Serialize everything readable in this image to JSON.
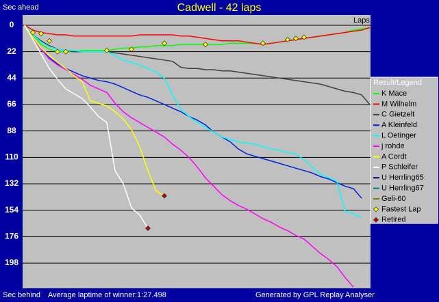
{
  "chart_data": {
    "type": "line",
    "title": "Cadwell - 42 laps",
    "y_label_top": "Sec ahead",
    "y_label_bottom": "Sec behind",
    "x_label": "Laps",
    "note": "Average laptime of winner:1:27.498",
    "credit": "Generated by GPL Replay Analyser",
    "legend_title": "Result/Legend",
    "invert_y": true,
    "grid": true,
    "x": [
      0,
      1,
      2,
      3,
      4,
      5,
      6,
      7,
      8,
      9,
      10,
      11,
      12,
      13,
      14,
      15,
      16,
      17,
      18,
      19,
      20,
      21,
      22,
      23,
      24,
      25,
      26,
      27,
      28,
      29,
      30,
      31,
      32,
      33,
      34,
      35,
      36,
      37,
      38,
      39,
      40,
      41,
      42
    ],
    "xlim": [
      0,
      42
    ],
    "ylim": [
      -8.5,
      219
    ],
    "yticks": [
      0,
      22,
      44,
      66,
      88,
      110,
      132,
      154,
      176,
      198
    ],
    "series": [
      {
        "name": "K Mace",
        "color": "#00ff00",
        "values": [
          0,
          8,
          16,
          20,
          22,
          22,
          22,
          21,
          21,
          21,
          21,
          20,
          19,
          19,
          18,
          18,
          17,
          17,
          17,
          16,
          16,
          16,
          16,
          16,
          16,
          15,
          15,
          15,
          15,
          16,
          15,
          14,
          13,
          12,
          11,
          10,
          9,
          8,
          7,
          6,
          4,
          3,
          2
        ]
      },
      {
        "name": "M Wilhelm",
        "color": "#ff0000",
        "values": [
          0,
          4,
          6,
          7,
          8,
          8,
          9,
          9,
          9,
          9,
          9,
          9,
          9,
          9,
          8,
          8,
          8,
          8,
          8,
          9,
          9,
          10,
          11,
          12,
          13,
          13,
          13,
          14,
          15,
          16,
          15,
          14,
          13,
          12,
          11,
          10,
          9,
          8,
          7,
          6,
          5,
          4,
          2
        ]
      },
      {
        "name": "C Gietzelt",
        "color": "#404040",
        "values": [
          0,
          8,
          13,
          17,
          20,
          21,
          22,
          22,
          22,
          22,
          22,
          23,
          24,
          25,
          26,
          27,
          28,
          29,
          30,
          35,
          36,
          36,
          37,
          37,
          38,
          38,
          39,
          40,
          41,
          42,
          43,
          44,
          45,
          46,
          47,
          48,
          49,
          51,
          53,
          55,
          56,
          58,
          66
        ]
      },
      {
        "name": "A Kleinfeld",
        "color": "#0020e0",
        "values": [
          0,
          10,
          20,
          27,
          32,
          36,
          39,
          42,
          44,
          46,
          47,
          49,
          52,
          55,
          58,
          60,
          63,
          66,
          69,
          72,
          76,
          79,
          83,
          89,
          93,
          97,
          103,
          107,
          109,
          111,
          113,
          115,
          117,
          119,
          121,
          123,
          126,
          128,
          131,
          134,
          136,
          144,
          null
        ]
      },
      {
        "name": "L Oetinger",
        "color": "#00ffff",
        "values": [
          0,
          8,
          14,
          18,
          20,
          21,
          21,
          22,
          22,
          22,
          22,
          25,
          29,
          31,
          33,
          36,
          39,
          44,
          58,
          70,
          76,
          81,
          85,
          89,
          93,
          95,
          97,
          98,
          99,
          101,
          103,
          104,
          106,
          107,
          112,
          118,
          124,
          127,
          130,
          155,
          157,
          160,
          null
        ]
      },
      {
        "name": "j rohde",
        "color": "#ff00ff",
        "values": [
          0,
          10,
          20,
          28,
          33,
          37,
          41,
          45,
          50,
          53,
          56,
          65,
          72,
          77,
          81,
          85,
          89,
          93,
          99,
          104,
          110,
          118,
          127,
          134,
          141,
          146,
          150,
          153,
          157,
          161,
          164,
          168,
          171,
          175,
          178,
          184,
          190,
          195,
          201,
          210,
          218,
          null,
          null
        ]
      },
      {
        "name": "A Cordt",
        "color": "#ffff00",
        "values": [
          0,
          10,
          19,
          25,
          31,
          36,
          42,
          47,
          63,
          65,
          67,
          72,
          78,
          87,
          101,
          121,
          138,
          142,
          null,
          null,
          null,
          null,
          null,
          null,
          null,
          null,
          null,
          null,
          null,
          null,
          null,
          null,
          null,
          null,
          null,
          null,
          null,
          null,
          null,
          null,
          null,
          null,
          null
        ]
      },
      {
        "name": "P Schleifer",
        "color": "#ffffff",
        "values": [
          0,
          12,
          24,
          36,
          45,
          53,
          57,
          61,
          68,
          76,
          81,
          121,
          132,
          152,
          158,
          169,
          null,
          null,
          null,
          null,
          null,
          null,
          null,
          null,
          null,
          null,
          null,
          null,
          null,
          null,
          null,
          null,
          null,
          null,
          null,
          null,
          null,
          null,
          null,
          null,
          null,
          null,
          null
        ]
      },
      {
        "name": "U Herrling65",
        "color": "#000080",
        "values": [
          null,
          null,
          null,
          null,
          null,
          null,
          null,
          null,
          null,
          null,
          null,
          null,
          null,
          null,
          null,
          null,
          null,
          null,
          null,
          null,
          null,
          null,
          null,
          null,
          null,
          null,
          null,
          null,
          null,
          null,
          null,
          null,
          null,
          null,
          null,
          null,
          null,
          null,
          null,
          null,
          null,
          null,
          null
        ]
      },
      {
        "name": "U Herrling67",
        "color": "#008080",
        "values": [
          null,
          null,
          null,
          null,
          null,
          null,
          null,
          null,
          null,
          null,
          null,
          null,
          null,
          null,
          null,
          null,
          null,
          null,
          null,
          null,
          null,
          null,
          null,
          null,
          null,
          null,
          null,
          null,
          null,
          null,
          null,
          null,
          null,
          null,
          null,
          null,
          null,
          null,
          null,
          null,
          null,
          null,
          null
        ]
      },
      {
        "name": "Geli-60",
        "color": "#808000",
        "values": [
          null,
          null,
          null,
          null,
          null,
          null,
          null,
          null,
          null,
          null,
          null,
          null,
          null,
          null,
          null,
          null,
          null,
          null,
          null,
          null,
          null,
          null,
          null,
          null,
          null,
          null,
          null,
          null,
          null,
          null,
          null,
          null,
          null,
          null,
          null,
          null,
          null,
          null,
          null,
          null,
          null,
          null,
          null
        ]
      }
    ],
    "markers": [
      {
        "name": "Fastest Lap",
        "color": "#ffff00",
        "x": [
          1,
          2,
          3,
          4,
          5,
          10,
          13,
          17,
          22,
          29,
          32,
          33,
          34
        ],
        "values": [
          6,
          7,
          13,
          22,
          22,
          21,
          20,
          15,
          16,
          15,
          12,
          11,
          10
        ]
      },
      {
        "name": "Retired",
        "color": "#c00000",
        "x": [
          17,
          15
        ],
        "values": [
          142,
          169
        ]
      }
    ]
  }
}
